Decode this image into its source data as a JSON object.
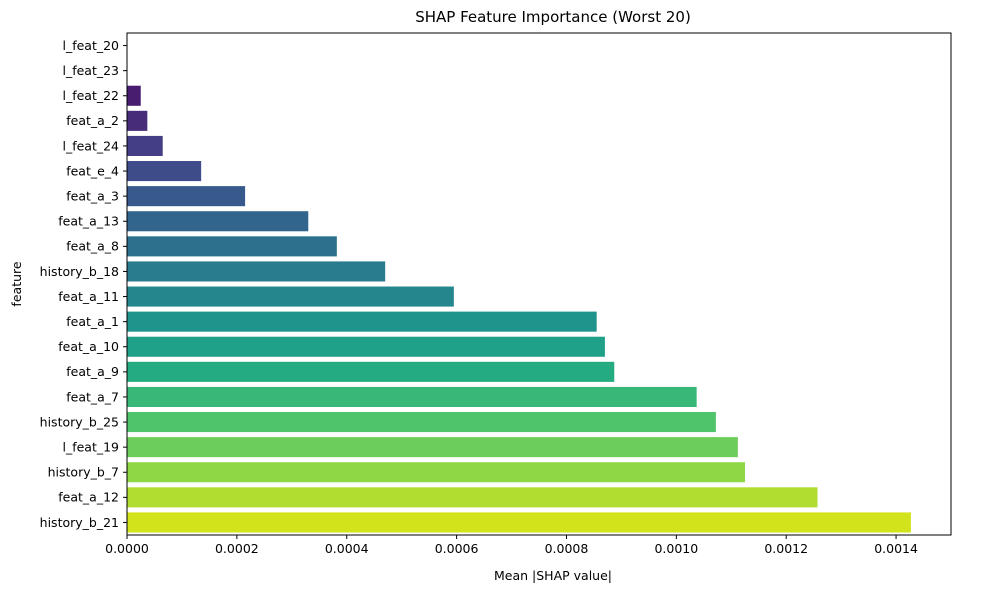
{
  "chart_data": {
    "type": "bar",
    "orientation": "horizontal",
    "title": "SHAP Feature Importance (Worst 20)",
    "xlabel": "Mean |SHAP value|",
    "ylabel": "feature",
    "xlim": [
      0,
      0.0015
    ],
    "xticks": [
      "0.0000",
      "0.0002",
      "0.0004",
      "0.0006",
      "0.0008",
      "0.0010",
      "0.0012",
      "0.0014"
    ],
    "xtick_values": [
      0,
      0.0002,
      0.0004,
      0.0006,
      0.0008,
      0.001,
      0.0012,
      0.0014
    ],
    "grid": false,
    "colormap": "viridis",
    "categories": [
      "l_feat_20",
      "l_feat_23",
      "l_feat_22",
      "feat_a_2",
      "l_feat_24",
      "feat_e_4",
      "feat_a_3",
      "feat_a_13",
      "feat_a_8",
      "history_b_18",
      "feat_a_11",
      "feat_a_1",
      "feat_a_10",
      "feat_a_9",
      "feat_a_7",
      "history_b_25",
      "l_feat_19",
      "history_b_7",
      "feat_a_12",
      "history_b_21"
    ],
    "values": [
      0.0,
      0.0,
      2.5e-05,
      3.7e-05,
      6.5e-05,
      0.000135,
      0.000215,
      0.00033,
      0.000382,
      0.00047,
      0.000595,
      0.000855,
      0.00087,
      0.000887,
      0.001037,
      0.001072,
      0.001112,
      0.001125,
      0.001257,
      0.001427
    ],
    "colors": [
      "#440154",
      "#471063",
      "#481c6e",
      "#472c7a",
      "#433e85",
      "#3e4c8a",
      "#38598c",
      "#32658e",
      "#2d708e",
      "#287c8e",
      "#24878e",
      "#1f948c",
      "#1fa088",
      "#25ab82",
      "#37b878",
      "#50c46a",
      "#6ccd5a",
      "#8fd744",
      "#b0dd2f",
      "#d2e21b"
    ]
  }
}
